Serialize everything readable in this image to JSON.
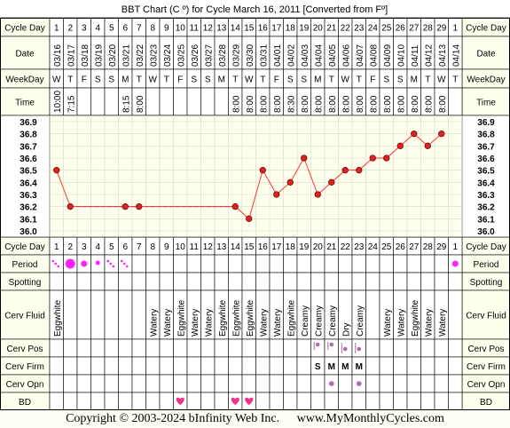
{
  "title": "BBT Chart (C º) for Cycle March 16, 2011  [Converted from Fº]",
  "row_labels": {
    "cycle_day": "Cycle Day",
    "date": "Date",
    "weekday": "WeekDay",
    "time": "Time",
    "period": "Period",
    "spotting": "Spotting",
    "cerv_fluid": "Cerv Fluid",
    "cerv_pos": "Cerv Pos",
    "cerv_firm": "Cerv Firm",
    "cerv_opn": "Cerv Opn",
    "bd": "BD"
  },
  "colors": {
    "grid_bg": "#ffffee",
    "label_bg": "#ffffee",
    "border": "#000000",
    "temp_line": "#ff3333",
    "temp_point": "#dd2222",
    "coverline": "#3333cc",
    "period_dot": "#ff22ff",
    "cerv_mark": "#b06bb0",
    "bd_heart": "#ee3388",
    "white_col": "#ffffff"
  },
  "columns": [
    {
      "day": "1",
      "date": "03/16",
      "weekday": "W",
      "time": "10:00",
      "period": "spot-light",
      "fluid": "Eggwhite",
      "pos": "",
      "firm": "",
      "opn": "",
      "bd": false
    },
    {
      "day": "2",
      "date": "03/17",
      "weekday": "T",
      "time": "7:15",
      "period": "heavy",
      "fluid": "",
      "pos": "",
      "firm": "",
      "opn": "",
      "bd": false
    },
    {
      "day": "3",
      "date": "03/18",
      "weekday": "F",
      "time": "",
      "period": "medium",
      "fluid": "",
      "pos": "",
      "firm": "",
      "opn": "",
      "bd": false
    },
    {
      "day": "4",
      "date": "03/19",
      "weekday": "S",
      "time": "",
      "period": "light",
      "fluid": "",
      "pos": "",
      "firm": "",
      "opn": "",
      "bd": false
    },
    {
      "day": "5",
      "date": "03/20",
      "weekday": "S",
      "time": "",
      "period": "spot-light",
      "fluid": "",
      "pos": "",
      "firm": "",
      "opn": "",
      "bd": false
    },
    {
      "day": "6",
      "date": "03/21",
      "weekday": "M",
      "time": "8:15",
      "period": "spot-light",
      "fluid": "",
      "pos": "",
      "firm": "",
      "opn": "",
      "bd": false
    },
    {
      "day": "7",
      "date": "03/22",
      "weekday": "T",
      "time": "8:00",
      "period": "",
      "fluid": "",
      "pos": "",
      "firm": "",
      "opn": "",
      "bd": false
    },
    {
      "day": "8",
      "date": "03/23",
      "weekday": "W",
      "time": "",
      "period": "",
      "fluid": "Watery",
      "pos": "",
      "firm": "",
      "opn": "",
      "bd": false
    },
    {
      "day": "9",
      "date": "03/24",
      "weekday": "T",
      "time": "",
      "period": "",
      "fluid": "Watery",
      "pos": "",
      "firm": "",
      "opn": "",
      "bd": false
    },
    {
      "day": "10",
      "date": "03/25",
      "weekday": "F",
      "time": "",
      "period": "",
      "fluid": "Eggwhite",
      "pos": "",
      "firm": "",
      "opn": "",
      "bd": true
    },
    {
      "day": "11",
      "date": "03/26",
      "weekday": "S",
      "time": "",
      "period": "",
      "fluid": "Watery",
      "pos": "",
      "firm": "",
      "opn": "",
      "bd": false
    },
    {
      "day": "12",
      "date": "03/27",
      "weekday": "S",
      "time": "",
      "period": "",
      "fluid": "Watery",
      "pos": "",
      "firm": "",
      "opn": "",
      "bd": false
    },
    {
      "day": "13",
      "date": "03/28",
      "weekday": "M",
      "time": "",
      "period": "",
      "fluid": "Eggwhite",
      "pos": "",
      "firm": "",
      "opn": "",
      "bd": false
    },
    {
      "day": "14",
      "date": "03/29",
      "weekday": "T",
      "time": "8:00",
      "period": "",
      "fluid": "Eggwhite",
      "pos": "",
      "firm": "",
      "opn": "",
      "bd": true
    },
    {
      "day": "15",
      "date": "03/30",
      "weekday": "W",
      "time": "8:00",
      "period": "",
      "fluid": "Eggwhite",
      "pos": "",
      "firm": "",
      "opn": "",
      "bd": true
    },
    {
      "day": "16",
      "date": "03/31",
      "weekday": "T",
      "time": "8:00",
      "period": "",
      "fluid": "Watery",
      "pos": "",
      "firm": "",
      "opn": "",
      "bd": false
    },
    {
      "day": "17",
      "date": "04/01",
      "weekday": "F",
      "time": "8:00",
      "period": "",
      "fluid": "Watery",
      "pos": "",
      "firm": "",
      "opn": "",
      "bd": false
    },
    {
      "day": "18",
      "date": "04/02",
      "weekday": "S",
      "time": "8:30",
      "period": "",
      "fluid": "Eggwhite",
      "pos": "",
      "firm": "",
      "opn": "",
      "bd": false
    },
    {
      "day": "19",
      "date": "04/03",
      "weekday": "S",
      "time": "8:00",
      "period": "",
      "fluid": "Creamy",
      "pos": "",
      "firm": "",
      "opn": "",
      "bd": false
    },
    {
      "day": "20",
      "date": "04/04",
      "weekday": "M",
      "time": "8:00",
      "period": "",
      "fluid": "Creamy",
      "pos": "high",
      "firm": "S",
      "opn": "",
      "bd": false
    },
    {
      "day": "21",
      "date": "04/05",
      "weekday": "T",
      "time": "8:00",
      "period": "",
      "fluid": "Creamy",
      "pos": "high",
      "firm": "M",
      "opn": "medium",
      "bd": false
    },
    {
      "day": "22",
      "date": "04/06",
      "weekday": "W",
      "time": "8:00",
      "period": "",
      "fluid": "Dry",
      "pos": "low",
      "firm": "M",
      "opn": "",
      "bd": false
    },
    {
      "day": "23",
      "date": "04/07",
      "weekday": "T",
      "time": "8:00",
      "period": "",
      "fluid": "Creamy",
      "pos": "low",
      "firm": "M",
      "opn": "medium",
      "bd": false
    },
    {
      "day": "24",
      "date": "04/08",
      "weekday": "F",
      "time": "8:00",
      "period": "",
      "fluid": "",
      "pos": "",
      "firm": "",
      "opn": "",
      "bd": false
    },
    {
      "day": "25",
      "date": "04/09",
      "weekday": "S",
      "time": "8:00",
      "period": "",
      "fluid": "Watery",
      "pos": "",
      "firm": "",
      "opn": "",
      "bd": false
    },
    {
      "day": "26",
      "date": "04/10",
      "weekday": "S",
      "time": "8:00",
      "period": "",
      "fluid": "Watery",
      "pos": "",
      "firm": "",
      "opn": "",
      "bd": false
    },
    {
      "day": "27",
      "date": "04/11",
      "weekday": "M",
      "time": "8:00",
      "period": "",
      "fluid": "Eggwhite",
      "pos": "",
      "firm": "",
      "opn": "",
      "bd": false
    },
    {
      "day": "28",
      "date": "04/12",
      "weekday": "T",
      "time": "8:00",
      "period": "",
      "fluid": "Watery",
      "pos": "",
      "firm": "",
      "opn": "",
      "bd": false
    },
    {
      "day": "29",
      "date": "04/13",
      "weekday": "W",
      "time": "8:00",
      "period": "",
      "fluid": "Watery",
      "pos": "",
      "firm": "",
      "opn": "",
      "bd": false
    },
    {
      "day": "1",
      "date": "04/14",
      "weekday": "T",
      "time": "",
      "period": "medium",
      "fluid": "",
      "pos": "",
      "firm": "",
      "opn": "",
      "bd": false
    }
  ],
  "chart_data": {
    "type": "line",
    "title": "BBT Chart (C º) for Cycle March 16, 2011  [Converted from Fº]",
    "xlabel": "Cycle Day",
    "ylabel": "",
    "ylim": [
      36.0,
      36.9
    ],
    "y_ticks": [
      "36.9",
      "36.8",
      "36.7",
      "36.6",
      "36.5",
      "36.4",
      "36.3",
      "36.2",
      "36.1",
      "36.0"
    ],
    "x": [
      1,
      2,
      6,
      7,
      14,
      15,
      16,
      17,
      18,
      19,
      20,
      21,
      22,
      23,
      24,
      25,
      26,
      27,
      28,
      29
    ],
    "series": [
      {
        "values": [
          36.5,
          36.2,
          36.2,
          36.2,
          36.2,
          36.1,
          36.5,
          36.3,
          36.4,
          36.6,
          36.3,
          36.4,
          36.5,
          36.5,
          36.6,
          36.6,
          36.7,
          36.8,
          36.7,
          36.8
        ]
      }
    ],
    "coverline": {
      "value": 36.2,
      "from_day": 2,
      "to_day": 14
    },
    "grid": true
  },
  "footer": {
    "copyright": "Copyright © 2003-2024 bInfinity Web Inc.",
    "site": "www.MyMonthlyCycles.com"
  }
}
